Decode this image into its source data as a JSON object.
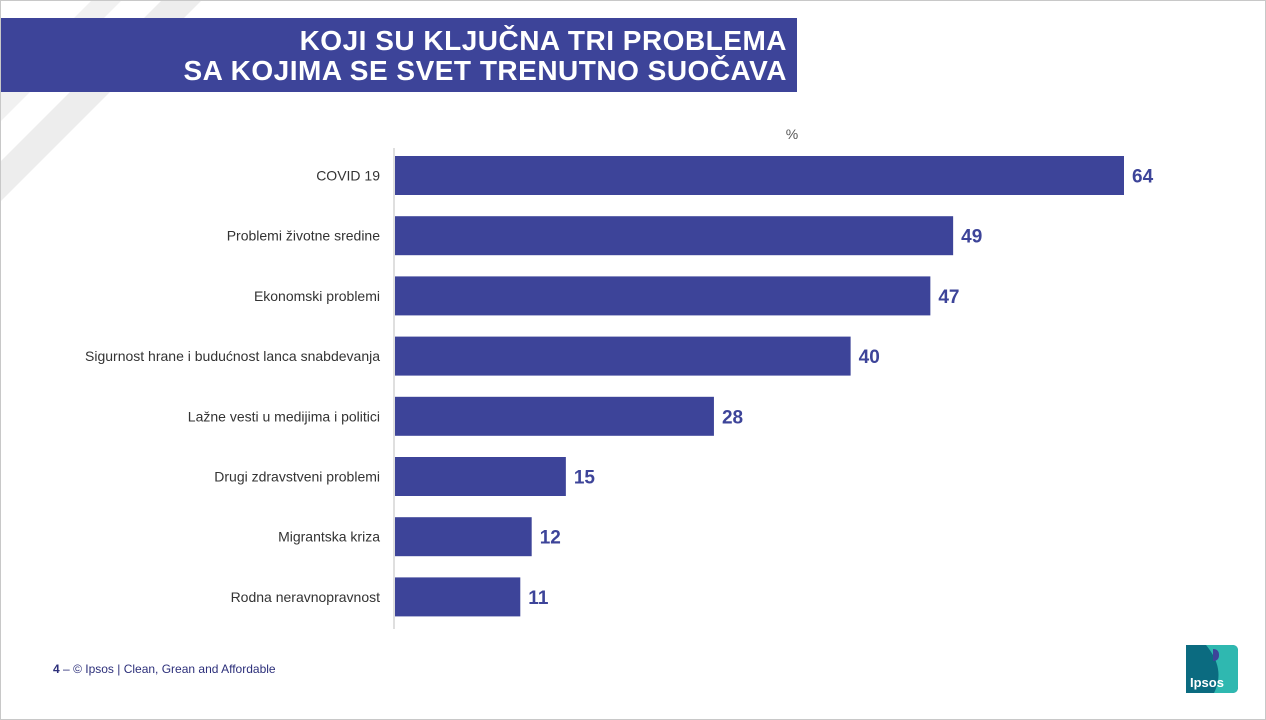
{
  "title": {
    "line1": "KOJI SU KLJUČNA TRI PROBLEMA",
    "line2": "SA KOJIMA SE SVET TRENUTNO SUOČAVA"
  },
  "chart_data": {
    "type": "bar",
    "orientation": "horizontal",
    "unit_label": "%",
    "categories": [
      "COVID 19",
      "Problemi životne sredine",
      "Ekonomski problemi",
      "Sigurnost hrane i budućnost lanca snabdevanja",
      "Lažne vesti u medijima i politici",
      "Drugi zdravstveni problemi",
      "Migrantska kriza",
      "Rodna neravnopravnost"
    ],
    "values": [
      64,
      49,
      47,
      40,
      28,
      15,
      12,
      11
    ],
    "bar_color": "#3d4499",
    "label_color": "#3d4499"
  },
  "footer": {
    "page_number": "4",
    "separator": "–",
    "text": "© Ipsos | Clean, Grean and Affordable"
  },
  "logo": {
    "text": "Ipsos",
    "colors": [
      "#0b6b80",
      "#2fb8b0",
      "#3d4499"
    ]
  }
}
